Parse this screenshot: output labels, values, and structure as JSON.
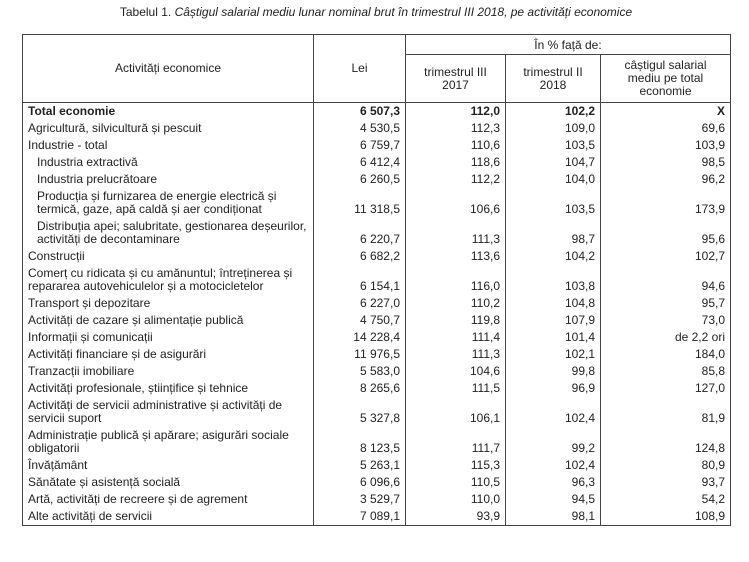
{
  "title": {
    "label": "Tabelul 1.",
    "text": "Câștigul salarial mediu lunar nominal brut în trimestrul III 2018, pe activități economice"
  },
  "table": {
    "header": {
      "activity": "Activități economice",
      "lei": "Lei",
      "group": "În % față de:",
      "columns": [
        "trimestrul III 2017",
        "trimestrul II 2018",
        "câștigul salarial mediu pe total economie"
      ]
    },
    "rows": [
      {
        "cells": [
          "Total economie",
          "6 507,3",
          "112,0",
          "102,2",
          "X"
        ],
        "bold": true
      },
      {
        "cells": [
          "Agricultură, silvicultură și pescuit",
          "4 530,5",
          "112,3",
          "109,0",
          "69,6"
        ]
      },
      {
        "cells": [
          "Industrie - total",
          "6 759,7",
          "110,6",
          "103,5",
          "103,9"
        ]
      },
      {
        "cells": [
          "Industria extractivă",
          "6 412,4",
          "118,6",
          "104,7",
          "98,5"
        ],
        "indented": true
      },
      {
        "cells": [
          "Industria prelucrătoare",
          "6 260,5",
          "112,2",
          "104,0",
          "96,2"
        ],
        "indented": true
      },
      {
        "cells": [
          "Producția și furnizarea de energie electrică și termică, gaze, apă caldă și aer condiționat",
          "11 318,5",
          "106,6",
          "103,5",
          "173,9"
        ],
        "indented": true
      },
      {
        "cells": [
          "Distribuția apei; salubritate, gestionarea deșeurilor, activități de decontaminare",
          "6 220,7",
          "111,3",
          "98,7",
          "95,6"
        ],
        "indented": true
      },
      {
        "cells": [
          "Construcții",
          "6 682,2",
          "113,6",
          "104,2",
          "102,7"
        ]
      },
      {
        "cells": [
          "Comerț cu ridicata și cu amănuntul; întreținerea și repararea autovehiculelor și a motocicletelor",
          "6 154,1",
          "116,0",
          "103,8",
          "94,6"
        ]
      },
      {
        "cells": [
          "Transport și depozitare",
          "6 227,0",
          "110,2",
          "104,8",
          "95,7"
        ]
      },
      {
        "cells": [
          "Activități de cazare și alimentație publică",
          "4 750,7",
          "119,8",
          "107,9",
          "73,0"
        ]
      },
      {
        "cells": [
          "Informații și comunicații",
          "14 228,4",
          "111,4",
          "101,4",
          "de 2,2 ori"
        ]
      },
      {
        "cells": [
          "Activități financiare și de asigurări",
          "11 976,5",
          "111,3",
          "102,1",
          "184,0"
        ]
      },
      {
        "cells": [
          "Tranzacții imobiliare",
          "5 583,0",
          "104,6",
          "99,8",
          "85,8"
        ]
      },
      {
        "cells": [
          "Activități profesionale, științifice și tehnice",
          "8 265,6",
          "111,5",
          "96,9",
          "127,0"
        ]
      },
      {
        "cells": [
          "Activități de servicii administrative și activități de servicii suport",
          "5 327,8",
          "106,1",
          "102,4",
          "81,9"
        ]
      },
      {
        "cells": [
          "Administrație publică și apărare; asigurări sociale obligatorii",
          "8 123,5",
          "111,7",
          "99,2",
          "124,8"
        ]
      },
      {
        "cells": [
          "Învățământ",
          "5 263,1",
          "115,3",
          "102,4",
          "80,9"
        ]
      },
      {
        "cells": [
          "Sănătate și asistență socială",
          "6 096,6",
          "110,5",
          "96,3",
          "93,7"
        ]
      },
      {
        "cells": [
          "Artă, activități de recreere și de agrement",
          "3 529,7",
          "110,0",
          "94,5",
          "54,2"
        ]
      },
      {
        "cells": [
          "Alte activități de servicii",
          "7 089,1",
          "93,9",
          "98,1",
          "108,9"
        ]
      }
    ]
  }
}
